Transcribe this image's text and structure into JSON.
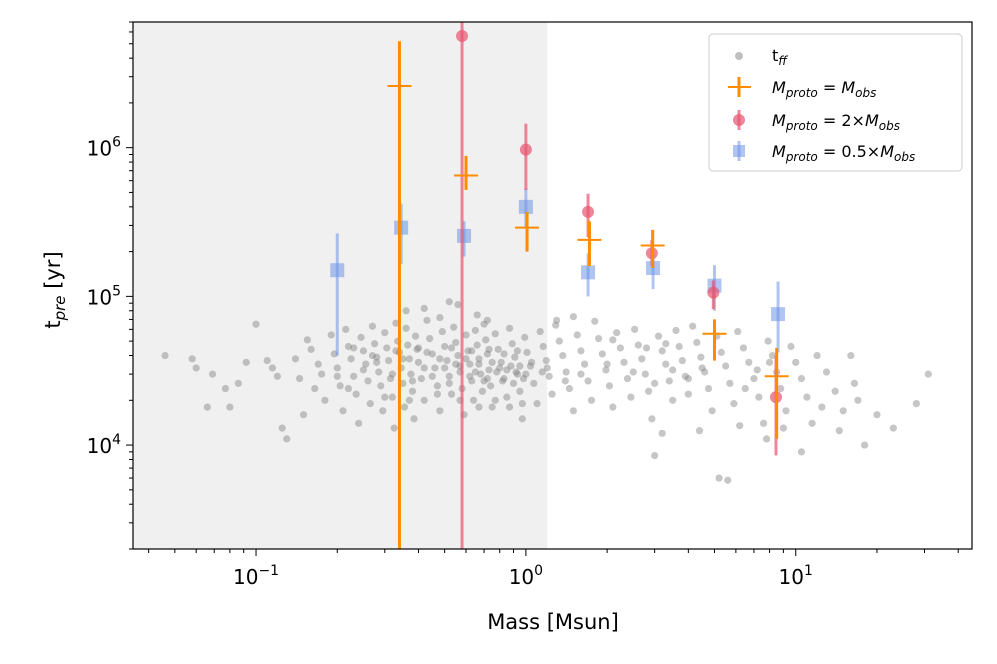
{
  "chart_data": {
    "type": "scatter",
    "xscale": "log",
    "yscale": "log",
    "xlim": [
      0.035,
      45
    ],
    "ylim": [
      2000,
      7000000
    ],
    "xlabel": "Mass [Msun]",
    "ylabel_main": "t",
    "ylabel_sub": "pre",
    "ylabel_rest": " [yr]",
    "x_ticks": [
      {
        "value": 0.1,
        "base": "10",
        "exp": "−1"
      },
      {
        "value": 1,
        "base": "10",
        "exp": "0"
      },
      {
        "value": 10,
        "base": "10",
        "exp": "1"
      }
    ],
    "y_ticks": [
      {
        "value": 10000,
        "base": "10",
        "exp": "4"
      },
      {
        "value": 100000,
        "base": "10",
        "exp": "5"
      },
      {
        "value": 1000000,
        "base": "10",
        "exp": "6"
      }
    ],
    "shaded_region": {
      "x_from": 0.035,
      "x_to": 1.2,
      "color": "#f0f0f0"
    },
    "colors": {
      "tff": "#808080",
      "obs": "#ff8c00",
      "double": "#e8546f",
      "half": "#7094e8"
    },
    "legend": {
      "placement": "top-right",
      "entries": [
        {
          "key": "tff",
          "label_main": "t",
          "label_sub": "ff"
        },
        {
          "key": "obs",
          "label": "M_proto = M_obs"
        },
        {
          "key": "double",
          "label": "M_proto = 2×M_obs"
        },
        {
          "key": "half",
          "label": "M_proto = 0.5×M_obs"
        }
      ]
    },
    "series": [
      {
        "key": "obs",
        "name": "M_proto = M_obs",
        "marker": "plus",
        "points": [
          {
            "x": 0.34,
            "y": 2600000,
            "ylo": 2000,
            "yhi": 5200000
          },
          {
            "x": 0.6,
            "y": 650000,
            "ylo": 520000,
            "yhi": 880000
          },
          {
            "x": 1.01,
            "y": 290000,
            "ylo": 200000,
            "yhi": 370000
          },
          {
            "x": 1.72,
            "y": 240000,
            "ylo": 160000,
            "yhi": 320000
          },
          {
            "x": 2.95,
            "y": 220000,
            "ylo": 155000,
            "yhi": 280000
          },
          {
            "x": 5.0,
            "y": 56000,
            "ylo": 37000,
            "yhi": 70000
          },
          {
            "x": 8.5,
            "y": 29000,
            "ylo": 11000,
            "yhi": 45000
          }
        ]
      },
      {
        "key": "double",
        "name": "M_proto = 2×M_obs",
        "marker": "circle",
        "points": [
          {
            "x": 0.58,
            "y": 5800000,
            "ylo": 2000,
            "yhi": 7000000
          },
          {
            "x": 1.0,
            "y": 970000,
            "ylo": 520000,
            "yhi": 1450000
          },
          {
            "x": 1.7,
            "y": 370000,
            "ylo": 250000,
            "yhi": 490000
          },
          {
            "x": 2.93,
            "y": 195000,
            "ylo": 160000,
            "yhi": 240000
          },
          {
            "x": 4.95,
            "y": 106000,
            "ylo": 82000,
            "yhi": 128000
          },
          {
            "x": 8.45,
            "y": 21000,
            "ylo": 8500,
            "yhi": 40000
          }
        ]
      },
      {
        "key": "half",
        "name": "M_proto = 0.5×M_obs",
        "marker": "square",
        "points": [
          {
            "x": 0.2,
            "y": 150000,
            "ylo": 40000,
            "yhi": 265000
          },
          {
            "x": 0.345,
            "y": 290000,
            "ylo": 165000,
            "yhi": 420000
          },
          {
            "x": 0.59,
            "y": 255000,
            "ylo": 185000,
            "yhi": 320000
          },
          {
            "x": 1.0,
            "y": 400000,
            "ylo": 290000,
            "yhi": 530000
          },
          {
            "x": 1.7,
            "y": 145000,
            "ylo": 100000,
            "yhi": 195000
          },
          {
            "x": 2.96,
            "y": 155000,
            "ylo": 112000,
            "yhi": 195000
          },
          {
            "x": 5.0,
            "y": 118000,
            "ylo": 80000,
            "yhi": 162000
          },
          {
            "x": 8.6,
            "y": 76000,
            "ylo": 42000,
            "yhi": 126000
          }
        ]
      }
    ],
    "tff_points": [
      [
        0.046,
        40000
      ],
      [
        0.058,
        38000
      ],
      [
        0.06,
        33000
      ],
      [
        0.066,
        18000
      ],
      [
        0.069,
        30000
      ],
      [
        0.077,
        24000
      ],
      [
        0.08,
        18000
      ],
      [
        0.086,
        26000
      ],
      [
        0.092,
        36000
      ],
      [
        0.1,
        65000
      ],
      [
        0.11,
        37000
      ],
      [
        0.115,
        33000
      ],
      [
        0.12,
        29000
      ],
      [
        0.125,
        13000
      ],
      [
        0.13,
        11000
      ],
      [
        0.14,
        38000
      ],
      [
        0.145,
        28000
      ],
      [
        0.15,
        16000
      ],
      [
        0.155,
        51000
      ],
      [
        0.16,
        44000
      ],
      [
        0.165,
        24000
      ],
      [
        0.17,
        35000
      ],
      [
        0.175,
        30000
      ],
      [
        0.18,
        20000
      ],
      [
        0.19,
        55000
      ],
      [
        0.195,
        41000
      ],
      [
        0.2,
        33000
      ],
      [
        0.205,
        25000
      ],
      [
        0.21,
        17000
      ],
      [
        0.215,
        60000
      ],
      [
        0.22,
        46000
      ],
      [
        0.225,
        38000
      ],
      [
        0.23,
        29000
      ],
      [
        0.235,
        22000
      ],
      [
        0.24,
        14000
      ],
      [
        0.245,
        53000
      ],
      [
        0.25,
        43000
      ],
      [
        0.255,
        35000
      ],
      [
        0.26,
        27000
      ],
      [
        0.265,
        19000
      ],
      [
        0.27,
        63000
      ],
      [
        0.275,
        48000
      ],
      [
        0.28,
        39000
      ],
      [
        0.285,
        31000
      ],
      [
        0.29,
        25000
      ],
      [
        0.295,
        17000
      ],
      [
        0.3,
        57000
      ],
      [
        0.305,
        45000
      ],
      [
        0.31,
        37000
      ],
      [
        0.315,
        28000
      ],
      [
        0.32,
        21000
      ],
      [
        0.325,
        13000
      ],
      [
        0.33,
        66000
      ],
      [
        0.335,
        50000
      ],
      [
        0.34,
        42000
      ],
      [
        0.345,
        33000
      ],
      [
        0.35,
        26000
      ],
      [
        0.355,
        18000
      ],
      [
        0.36,
        61000
      ],
      [
        0.365,
        47000
      ],
      [
        0.37,
        38000
      ],
      [
        0.375,
        30000
      ],
      [
        0.38,
        23000
      ],
      [
        0.385,
        15000
      ],
      [
        0.39,
        54000
      ],
      [
        0.395,
        44000
      ],
      [
        0.4,
        36000
      ],
      [
        0.41,
        28000
      ],
      [
        0.42,
        20000
      ],
      [
        0.43,
        69000
      ],
      [
        0.44,
        52000
      ],
      [
        0.45,
        41000
      ],
      [
        0.46,
        33000
      ],
      [
        0.47,
        25000
      ],
      [
        0.48,
        17000
      ],
      [
        0.49,
        58000
      ],
      [
        0.5,
        46000
      ],
      [
        0.51,
        37000
      ],
      [
        0.52,
        29000
      ],
      [
        0.53,
        22000
      ],
      [
        0.54,
        62000
      ],
      [
        0.55,
        49000
      ],
      [
        0.56,
        40000
      ],
      [
        0.57,
        31000
      ],
      [
        0.58,
        24000
      ],
      [
        0.59,
        16000
      ],
      [
        0.6,
        55000
      ],
      [
        0.61,
        43000
      ],
      [
        0.62,
        35000
      ],
      [
        0.63,
        27000
      ],
      [
        0.64,
        20000
      ],
      [
        0.65,
        59000
      ],
      [
        0.66,
        47000
      ],
      [
        0.67,
        38000
      ],
      [
        0.68,
        30000
      ],
      [
        0.69,
        23000
      ],
      [
        0.7,
        65000
      ],
      [
        0.71,
        51000
      ],
      [
        0.72,
        41000
      ],
      [
        0.73,
        32000
      ],
      [
        0.74,
        25000
      ],
      [
        0.75,
        18000
      ],
      [
        0.77,
        56000
      ],
      [
        0.79,
        44000
      ],
      [
        0.81,
        36000
      ],
      [
        0.83,
        28000
      ],
      [
        0.85,
        21000
      ],
      [
        0.87,
        61000
      ],
      [
        0.89,
        48000
      ],
      [
        0.91,
        39000
      ],
      [
        0.93,
        30000
      ],
      [
        0.95,
        23000
      ],
      [
        0.97,
        15000
      ],
      [
        0.99,
        53000
      ],
      [
        1.01,
        42000
      ],
      [
        1.04,
        34000
      ],
      [
        1.07,
        26000
      ],
      [
        1.1,
        19000
      ],
      [
        1.13,
        58000
      ],
      [
        1.16,
        46000
      ],
      [
        1.19,
        37000
      ],
      [
        1.22,
        29000
      ],
      [
        1.25,
        22000
      ],
      [
        1.29,
        64000
      ],
      [
        1.33,
        50000
      ],
      [
        1.37,
        40000
      ],
      [
        1.41,
        31000
      ],
      [
        1.45,
        24000
      ],
      [
        1.5,
        17000
      ],
      [
        1.55,
        55000
      ],
      [
        1.6,
        43000
      ],
      [
        1.65,
        35000
      ],
      [
        1.7,
        27000
      ],
      [
        1.75,
        20000
      ],
      [
        1.8,
        68000
      ],
      [
        1.86,
        52000
      ],
      [
        1.92,
        41000
      ],
      [
        1.98,
        32000
      ],
      [
        2.04,
        25000
      ],
      [
        2.1,
        18000
      ],
      [
        2.17,
        57000
      ],
      [
        2.24,
        45000
      ],
      [
        2.31,
        36000
      ],
      [
        2.38,
        28000
      ],
      [
        2.45,
        21000
      ],
      [
        2.53,
        60000
      ],
      [
        2.61,
        47000
      ],
      [
        2.69,
        38000
      ],
      [
        2.77,
        30000
      ],
      [
        2.85,
        23000
      ],
      [
        2.93,
        15000
      ],
      [
        3.0,
        8500
      ],
      [
        3.1,
        54000
      ],
      [
        3.2,
        43000
      ],
      [
        3.3,
        35000
      ],
      [
        3.4,
        27000
      ],
      [
        3.5,
        20000
      ],
      [
        3.6,
        59000
      ],
      [
        3.7,
        46000
      ],
      [
        3.8,
        37000
      ],
      [
        3.9,
        29000
      ],
      [
        4.0,
        22000
      ],
      [
        4.15,
        63000
      ],
      [
        4.3,
        49000
      ],
      [
        4.45,
        39000
      ],
      [
        4.6,
        31000
      ],
      [
        4.75,
        24000
      ],
      [
        4.9,
        17000
      ],
      [
        5.1,
        54000
      ],
      [
        5.3,
        42000
      ],
      [
        5.5,
        34000
      ],
      [
        5.7,
        26000
      ],
      [
        5.2,
        6000
      ],
      [
        5.6,
        5800
      ],
      [
        5.9,
        19000
      ],
      [
        6.1,
        58000
      ],
      [
        6.4,
        45000
      ],
      [
        6.7,
        36000
      ],
      [
        7.0,
        28000
      ],
      [
        7.3,
        21000
      ],
      [
        7.6,
        14000
      ],
      [
        7.9,
        50000
      ],
      [
        8.2,
        40000
      ],
      [
        8.5,
        31000
      ],
      [
        8.8,
        24000
      ],
      [
        9.2,
        17000
      ],
      [
        9.6,
        46000
      ],
      [
        10.0,
        36000
      ],
      [
        10.5,
        28000
      ],
      [
        11,
        21000
      ],
      [
        11.5,
        14000
      ],
      [
        12,
        40000
      ],
      [
        13,
        31000
      ],
      [
        14,
        23000
      ],
      [
        15,
        17000
      ],
      [
        16,
        40000
      ],
      [
        17,
        20000
      ],
      [
        18,
        10000
      ],
      [
        20,
        16000
      ],
      [
        23,
        13000
      ],
      [
        28,
        19000
      ],
      [
        31,
        30000
      ],
      [
        0.2,
        29000
      ],
      [
        0.3,
        21000
      ],
      [
        0.4,
        45000
      ],
      [
        0.5,
        33000
      ],
      [
        0.6,
        38000
      ],
      [
        0.7,
        27000
      ],
      [
        0.8,
        33000
      ],
      [
        0.9,
        26000
      ],
      [
        1.0,
        30000
      ],
      [
        0.25,
        32000
      ],
      [
        0.35,
        38000
      ],
      [
        0.45,
        29000
      ],
      [
        0.55,
        35000
      ],
      [
        0.65,
        31000
      ],
      [
        0.75,
        36000
      ],
      [
        0.85,
        32000
      ],
      [
        0.95,
        34000
      ],
      [
        1.2,
        33000
      ],
      [
        1.4,
        27000
      ],
      [
        1.6,
        30000
      ],
      [
        2.0,
        35000
      ],
      [
        2.5,
        31000
      ],
      [
        3.0,
        26000
      ],
      [
        3.5,
        32000
      ],
      [
        4.0,
        28000
      ],
      [
        4.5,
        33000
      ],
      [
        0.22,
        24000
      ],
      [
        0.28,
        36000
      ],
      [
        0.32,
        30000
      ],
      [
        0.38,
        27000
      ],
      [
        0.42,
        33000
      ],
      [
        0.48,
        38000
      ],
      [
        0.52,
        26000
      ],
      [
        0.57,
        34000
      ],
      [
        0.62,
        29000
      ],
      [
        0.67,
        35000
      ],
      [
        0.72,
        28000
      ],
      [
        0.78,
        31000
      ],
      [
        0.82,
        27000
      ],
      [
        0.88,
        34000
      ],
      [
        0.92,
        31000
      ],
      [
        0.98,
        28000
      ],
      [
        1.05,
        36000
      ],
      [
        1.15,
        31000
      ],
      [
        0.27,
        40000
      ],
      [
        0.37,
        20000
      ],
      [
        0.47,
        22000
      ],
      [
        0.57,
        20000
      ],
      [
        0.67,
        18000
      ],
      [
        0.77,
        20000
      ],
      [
        0.87,
        18000
      ],
      [
        0.97,
        19000
      ],
      [
        0.23,
        45000
      ],
      [
        0.33,
        43000
      ],
      [
        0.43,
        42000
      ],
      [
        0.53,
        45000
      ],
      [
        0.63,
        43000
      ],
      [
        0.73,
        44000
      ],
      [
        0.83,
        41000
      ],
      [
        0.93,
        43000
      ],
      [
        0.36,
        80000
      ],
      [
        0.48,
        72000
      ],
      [
        0.56,
        88000
      ],
      [
        0.66,
        75000
      ],
      [
        0.72,
        69000
      ],
      [
        0.52,
        92000
      ],
      [
        0.42,
        83000
      ],
      [
        1.3,
        69000
      ],
      [
        1.5,
        73000
      ],
      [
        2.1,
        51000
      ],
      [
        2.8,
        45000
      ],
      [
        3.3,
        48000
      ],
      [
        6.5,
        24000
      ],
      [
        7.2,
        32000
      ],
      [
        8.0,
        36000
      ],
      [
        9.0,
        13000
      ],
      [
        3.2,
        12000
      ],
      [
        4.4,
        12500
      ],
      [
        6.2,
        13500
      ],
      [
        7.8,
        11000
      ],
      [
        10.5,
        9000
      ],
      [
        12.5,
        18000
      ],
      [
        14.5,
        12500
      ],
      [
        16.5,
        26000
      ]
    ]
  }
}
